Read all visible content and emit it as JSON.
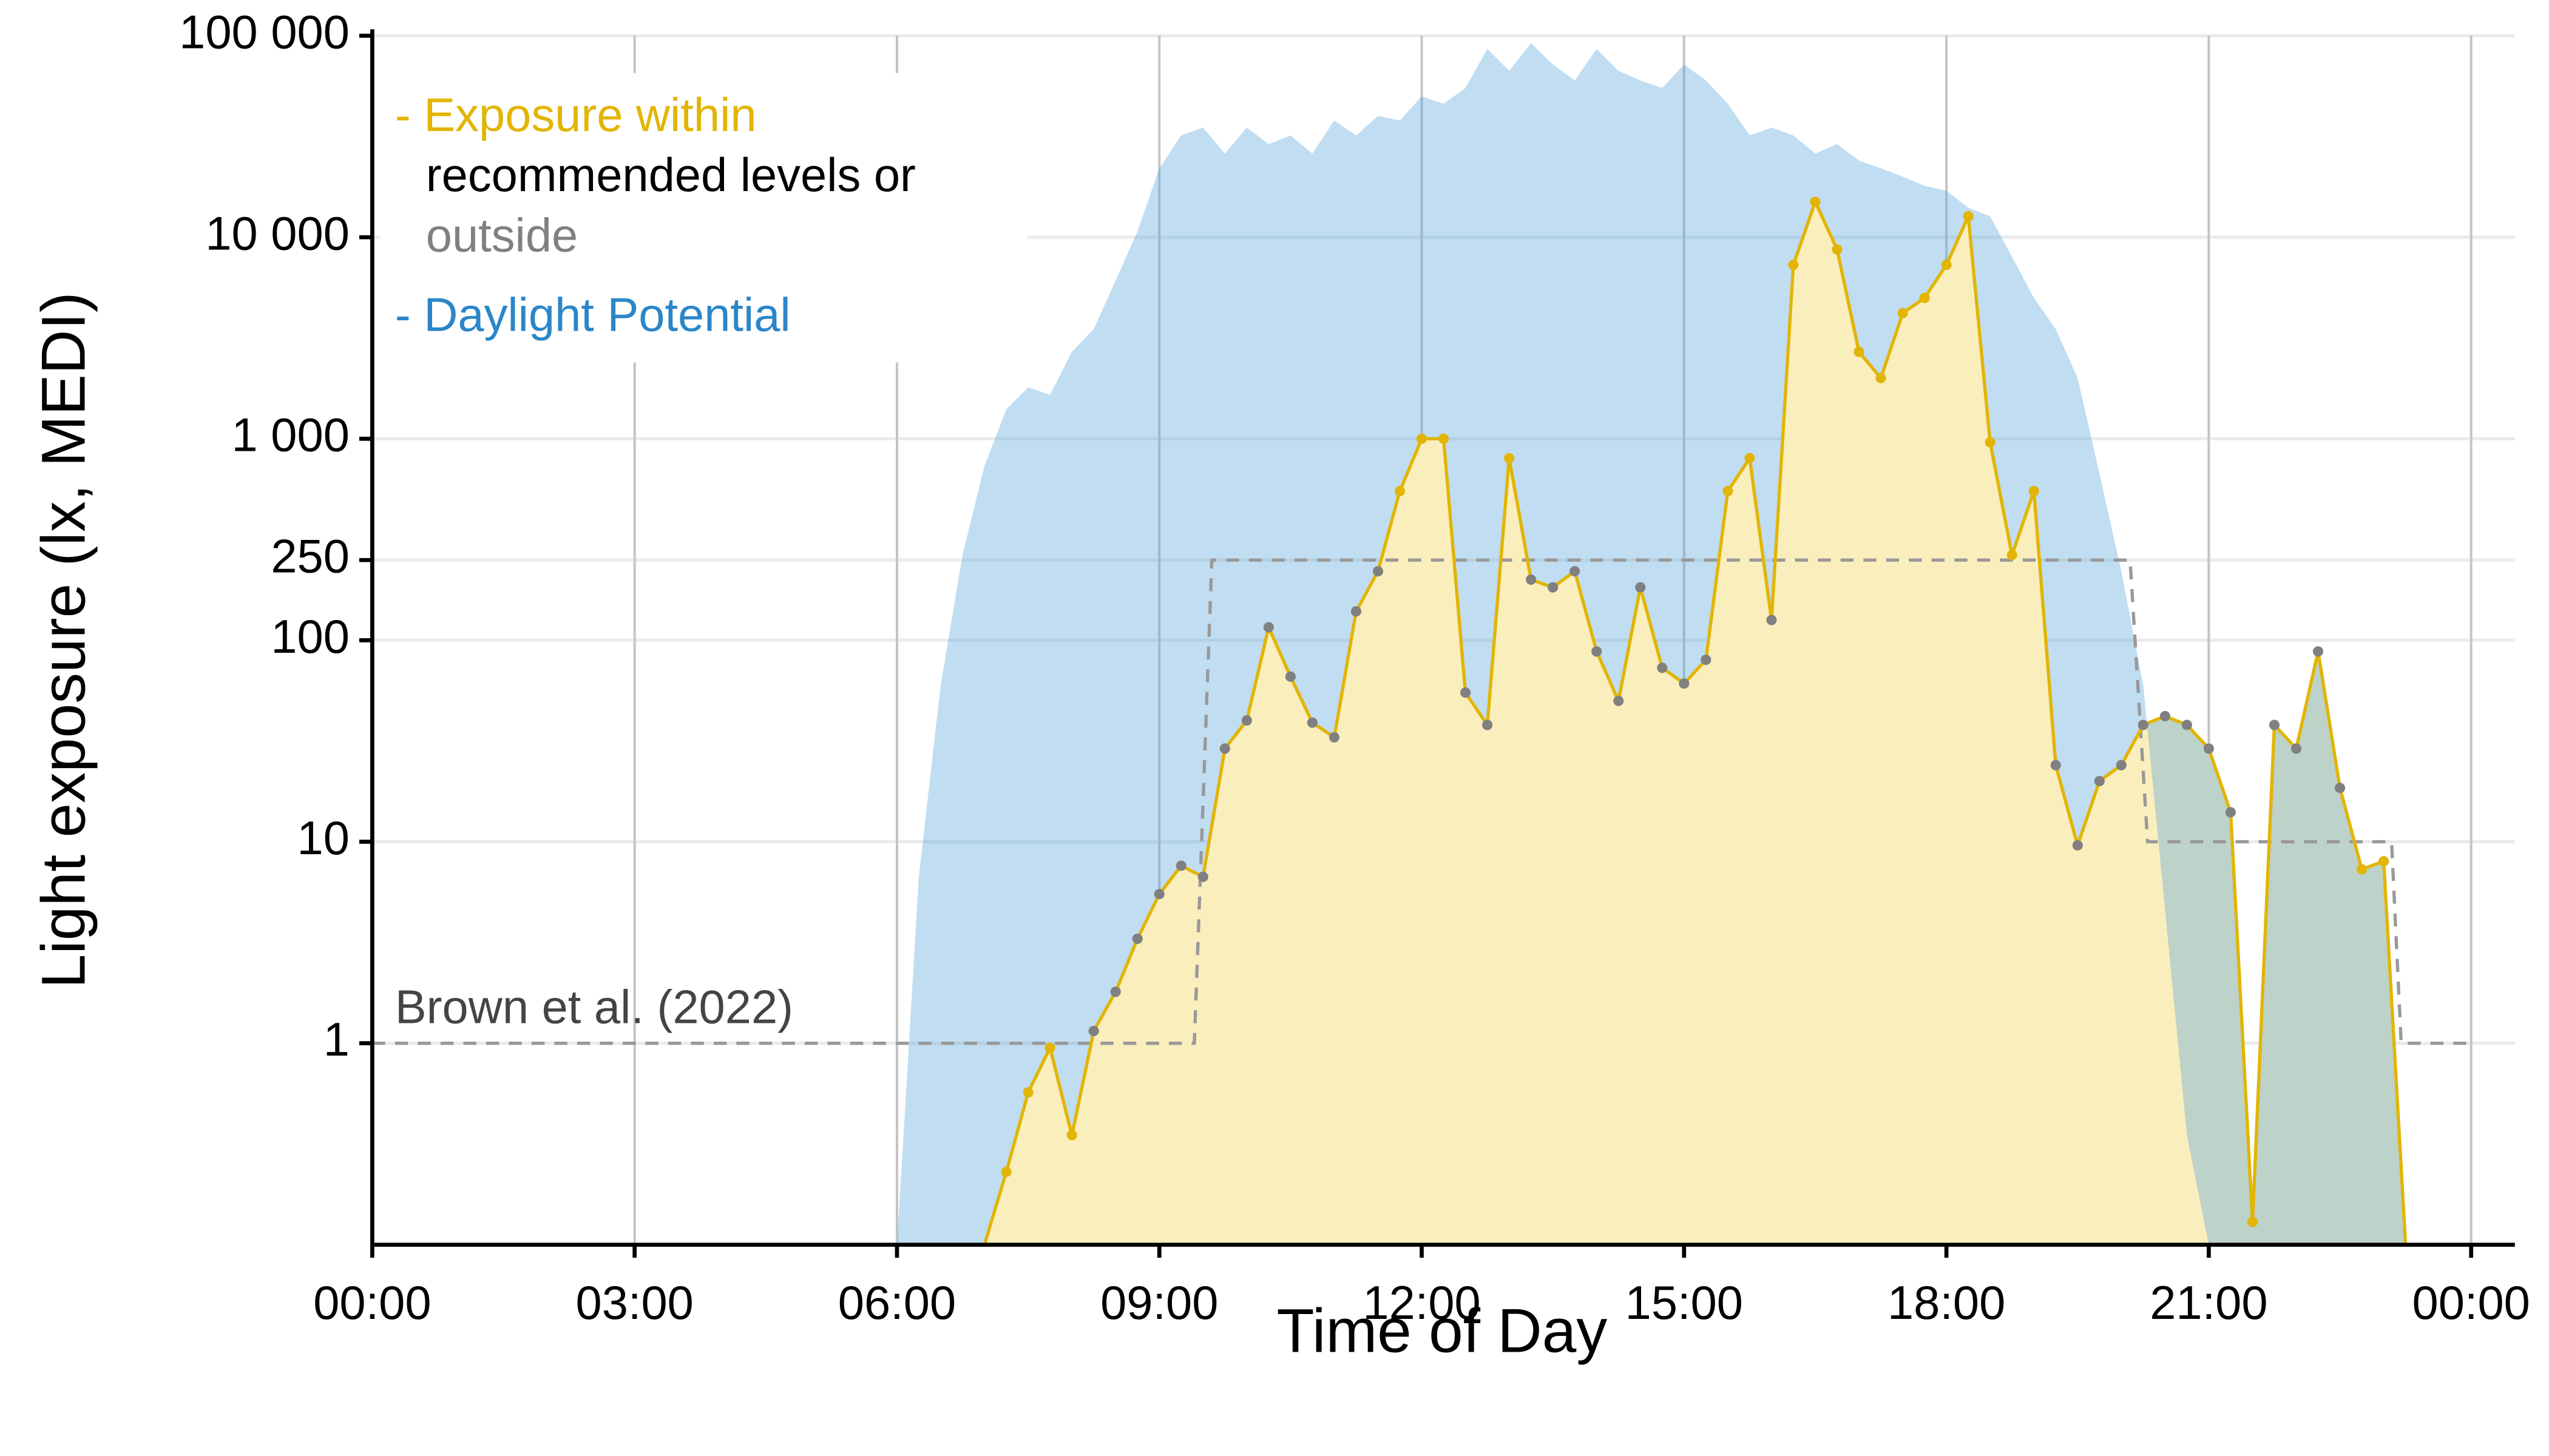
{
  "chart_data": {
    "type": "line",
    "yscale": "log",
    "xlabel": "Time of Day",
    "ylabel": "Light exposure (lx, MEDI)",
    "xlim": [
      0,
      24.5
    ],
    "ylim": [
      0.1,
      100000
    ],
    "xticks": [
      {
        "value": 0,
        "label": "00:00"
      },
      {
        "value": 3,
        "label": "03:00"
      },
      {
        "value": 6,
        "label": "06:00"
      },
      {
        "value": 9,
        "label": "09:00"
      },
      {
        "value": 12,
        "label": "12:00"
      },
      {
        "value": 15,
        "label": "15:00"
      },
      {
        "value": 18,
        "label": "18:00"
      },
      {
        "value": 21,
        "label": "21:00"
      },
      {
        "value": 24,
        "label": "00:00"
      }
    ],
    "yticks": [
      1,
      10,
      100,
      250,
      {
        "value": 1000,
        "label": "1 000"
      },
      {
        "value": 10000,
        "label": "10 000"
      },
      {
        "value": 100000,
        "label": "100 000"
      }
    ],
    "grid": true,
    "x": [
      0,
      0.25,
      0.5,
      0.75,
      1,
      1.25,
      1.5,
      1.75,
      2,
      2.25,
      2.5,
      2.75,
      3,
      3.25,
      3.5,
      3.75,
      4,
      4.25,
      4.5,
      4.75,
      5,
      5.25,
      5.5,
      5.75,
      6,
      6.25,
      6.5,
      6.75,
      7,
      7.25,
      7.5,
      7.75,
      8,
      8.25,
      8.5,
      8.75,
      9,
      9.25,
      9.5,
      9.75,
      10,
      10.25,
      10.5,
      10.75,
      11,
      11.25,
      11.5,
      11.75,
      12,
      12.25,
      12.5,
      12.75,
      13,
      13.25,
      13.5,
      13.75,
      14,
      14.25,
      14.5,
      14.75,
      15,
      15.25,
      15.5,
      15.75,
      16,
      16.25,
      16.5,
      16.75,
      17,
      17.25,
      17.5,
      17.75,
      18,
      18.25,
      18.5,
      18.75,
      19,
      19.25,
      19.5,
      19.75,
      20,
      20.25,
      20.5,
      20.75,
      21,
      21.25,
      21.5,
      21.75,
      22,
      22.25,
      22.5,
      22.75,
      23,
      23.25,
      23.5,
      23.75,
      24
    ],
    "series": [
      {
        "name": "- Daylight Potential",
        "color": "#5aa5dd",
        "fill_opacity": 0.38,
        "text_color": "#2a86c8",
        "values": [
          0,
          0,
          0,
          0,
          0,
          0,
          0,
          0,
          0,
          0,
          0,
          0,
          0,
          0,
          0,
          0,
          0,
          0,
          0,
          0,
          0,
          0,
          0,
          0,
          0,
          6.7,
          60,
          265,
          730,
          1400,
          1800,
          1650,
          2700,
          3500,
          6100,
          10700,
          22000,
          32000,
          35000,
          26000,
          35000,
          29000,
          32000,
          26000,
          38000,
          32000,
          40000,
          38000,
          50000,
          46000,
          55000,
          86000,
          67000,
          92000,
          72000,
          60000,
          86000,
          67000,
          60000,
          55000,
          72000,
          60000,
          46000,
          32000,
          35000,
          32000,
          26000,
          29000,
          24000,
          22000,
          20000,
          18000,
          17000,
          14000,
          12700,
          8000,
          5000,
          3500,
          2000,
          670,
          220,
          60,
          4.6,
          0.35,
          0,
          0,
          0,
          0,
          0,
          0,
          0,
          0,
          0,
          0,
          0,
          0,
          0
        ]
      },
      {
        "name": "- Exposure within",
        "color": "#e2b505",
        "area_color": "#faeebd",
        "outside_color": "#808080",
        "values": [
          0,
          0,
          0,
          0,
          0,
          0,
          0,
          0,
          0,
          0,
          0,
          0,
          0,
          0,
          0,
          0,
          0,
          0,
          0,
          0,
          0,
          0,
          0,
          0,
          0,
          0,
          0,
          0,
          0,
          0.23,
          0.57,
          0.95,
          0.35,
          1.15,
          1.8,
          3.3,
          5.5,
          7.6,
          6.7,
          29,
          40,
          116,
          66,
          39,
          33,
          139,
          220,
          550,
          1000,
          1000,
          55,
          38,
          800,
          200,
          183,
          220,
          88,
          50,
          183,
          73,
          61,
          80,
          550,
          800,
          126,
          7300,
          15000,
          8700,
          2700,
          2000,
          4200,
          5000,
          7300,
          12700,
          960,
          265,
          550,
          24,
          9.6,
          20,
          24,
          38,
          42,
          38,
          29,
          14,
          0.13,
          38,
          29,
          88,
          18.5,
          7.3,
          8,
          0,
          0,
          0,
          0
        ]
      }
    ],
    "legend_extra": [
      "recommended levels or",
      "outside"
    ],
    "threshold": {
      "name": "Brown et al. (2022)",
      "color": "#999999",
      "x": [
        0,
        9.4,
        9.6,
        20.1,
        20.3,
        23.09,
        23.2,
        24
      ],
      "values": [
        1,
        1,
        250,
        250,
        10,
        10,
        1,
        1
      ],
      "limits": [
        "max",
        "max",
        "min",
        "min",
        "max",
        "max",
        "max",
        "max"
      ]
    }
  }
}
